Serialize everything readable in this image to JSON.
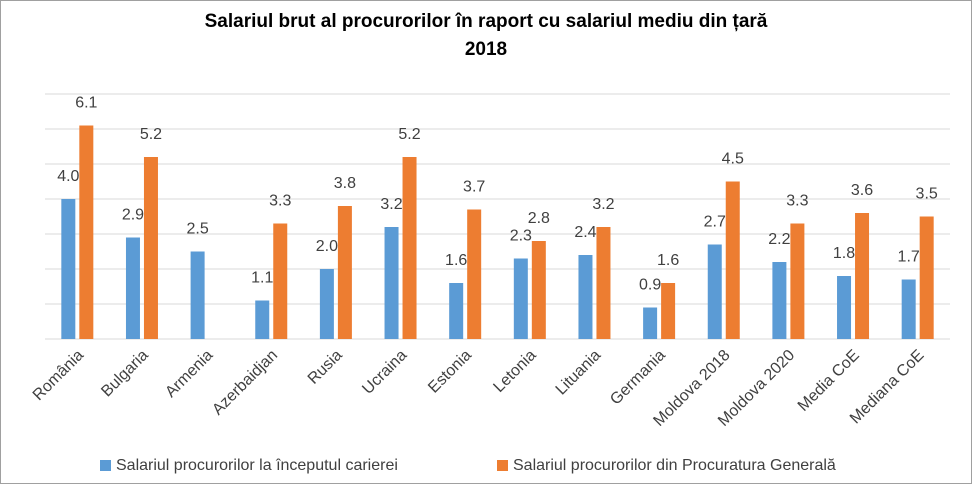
{
  "chart_data": {
    "type": "bar",
    "title": "Salariul brut al procurorilor în raport cu salariul mediu din țară",
    "subtitle": "2018",
    "categories": [
      "România",
      "Bulgaria",
      "Armenia",
      "Azerbaidjan",
      "Rusia",
      "Ucraina",
      "Estonia",
      "Letonia",
      "Lituania",
      "Germania",
      "Moldova 2018",
      "Moldova 2020",
      "Media CoE",
      "Mediana CoE"
    ],
    "series": [
      {
        "name": "Salariul procurorilor la începutul carierei",
        "color": "#5b9bd5",
        "values": [
          4.0,
          2.9,
          2.5,
          1.1,
          2.0,
          3.2,
          1.6,
          2.3,
          2.4,
          0.9,
          2.7,
          2.2,
          1.8,
          1.7
        ],
        "value_labels": [
          "4.0",
          "2.9",
          "2.5",
          "1.1",
          "2.0",
          "3.2",
          "1.6",
          "2.3",
          "2.4",
          "0.9",
          "2.7",
          "2.2",
          "1.8",
          "1.7"
        ]
      },
      {
        "name": "Salariul procurorilor din Procuratura Generală",
        "color": "#ed7d31",
        "values": [
          6.1,
          5.2,
          null,
          3.3,
          3.8,
          5.2,
          3.7,
          2.8,
          3.2,
          1.6,
          4.5,
          3.3,
          3.6,
          3.5
        ],
        "value_labels": [
          "6.1",
          "5.2",
          null,
          "3.3",
          "3.8",
          "5.2",
          "3.7",
          "2.8",
          "3.2",
          "1.6",
          "4.5",
          "3.3",
          "3.6",
          "3.5"
        ]
      }
    ],
    "ylim": [
      0,
      7
    ],
    "yticks": [
      0,
      1,
      2,
      3,
      4,
      5,
      6,
      7
    ],
    "grid": true,
    "legend": "bottom"
  }
}
